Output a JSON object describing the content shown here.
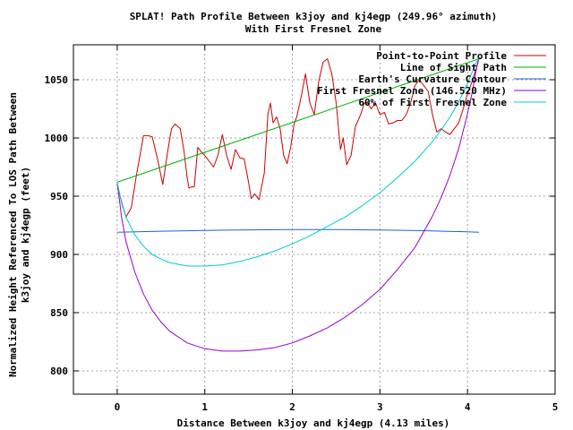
{
  "chart_data": {
    "type": "line",
    "title": "SPLAT! Path Profile Between k3joy and kj4egp (249.96° azimuth)",
    "subtitle": "With First Fresnel Zone",
    "xlabel": "Distance Between k3joy and kj4egp (4.13 miles)",
    "ylabel_line1": "Normalized Height Referenced To LOS Path Between",
    "ylabel_line2": "k3joy and kj4egp (feet)",
    "xlim": [
      -0.5,
      5
    ],
    "ylim": [
      780,
      1080
    ],
    "x_ticks": [
      0,
      1,
      2,
      3,
      4,
      5
    ],
    "y_ticks": [
      800,
      850,
      900,
      950,
      1000,
      1050
    ],
    "grid": true,
    "legend_position": "top-right",
    "series": [
      {
        "name": "Point-to-Point Profile",
        "color": "#cc0000",
        "x": [
          0.0,
          0.05,
          0.1,
          0.16,
          0.22,
          0.3,
          0.35,
          0.4,
          0.46,
          0.52,
          0.58,
          0.62,
          0.66,
          0.72,
          0.76,
          0.8,
          0.82,
          0.85,
          0.88,
          0.92,
          0.96,
          1.0,
          1.05,
          1.1,
          1.15,
          1.2,
          1.25,
          1.3,
          1.35,
          1.4,
          1.45,
          1.5,
          1.53,
          1.57,
          1.62,
          1.68,
          1.72,
          1.75,
          1.78,
          1.82,
          1.86,
          1.9,
          1.94,
          1.98,
          2.02,
          2.05,
          2.1,
          2.15,
          2.2,
          2.25,
          2.3,
          2.35,
          2.4,
          2.45,
          2.5,
          2.55,
          2.58,
          2.62,
          2.67,
          2.72,
          2.78,
          2.82,
          2.86,
          2.9,
          2.95,
          3.0,
          3.05,
          3.1,
          3.15,
          3.2,
          3.25,
          3.3,
          3.35,
          3.4,
          3.45,
          3.5,
          3.55,
          3.6,
          3.65,
          3.7,
          3.75,
          3.8,
          3.85,
          3.9,
          3.95,
          4.0,
          4.05,
          4.1,
          4.13
        ],
        "y": [
          960,
          945,
          932,
          940,
          968,
          1002,
          1002,
          1001,
          982,
          960,
          990,
          1008,
          1012,
          1008,
          990,
          965,
          957,
          958,
          958,
          992,
          988,
          985,
          980,
          975,
          985,
          1003,
          985,
          973,
          990,
          983,
          982,
          962,
          948,
          952,
          947,
          970,
          1020,
          1030,
          1013,
          1018,
          1008,
          985,
          978,
          992,
          1012,
          1018,
          1035,
          1055,
          1030,
          1020,
          1048,
          1065,
          1068,
          1055,
          1030,
          990,
          1000,
          977,
          985,
          1010,
          1020,
          1030,
          1030,
          1025,
          1030,
          1020,
          1022,
          1012,
          1013,
          1015,
          1015,
          1020,
          1030,
          1045,
          1050,
          1045,
          1040,
          1020,
          1005,
          1008,
          1005,
          1003,
          1008,
          1013,
          1025,
          1038,
          1048,
          1060,
          1068
        ]
      },
      {
        "name": "Line of Sight Path",
        "color": "#00b000",
        "x": [
          0,
          4.13
        ],
        "y": [
          962,
          1068
        ]
      },
      {
        "name": "Earth's Curvature Contour",
        "color": "#1a66cc",
        "x": [
          0,
          0.5,
          1.0,
          1.5,
          2.0,
          2.5,
          3.0,
          3.5,
          4.0,
          4.13
        ],
        "y": [
          919,
          919.9,
          920.6,
          921.1,
          921.4,
          921.4,
          921.0,
          920.4,
          919.4,
          919
        ]
      },
      {
        "name": "First Fresnel Zone (146.520 MHz)",
        "color": "#9900cc",
        "x": [
          0,
          0.05,
          0.1,
          0.2,
          0.3,
          0.4,
          0.5,
          0.6,
          0.8,
          1.0,
          1.2,
          1.4,
          1.6,
          1.8,
          2.0,
          2.2,
          2.4,
          2.6,
          2.8,
          3.0,
          3.2,
          3.4,
          3.6,
          3.7,
          3.8,
          3.9,
          4.0,
          4.05,
          4.1,
          4.13
        ],
        "y": [
          962,
          932,
          911,
          885,
          866,
          852,
          842,
          834,
          824,
          819,
          817,
          817,
          818,
          820,
          824,
          830,
          837,
          846,
          857,
          870,
          887,
          906,
          933,
          949,
          968,
          991,
          1021,
          1038,
          1059,
          1068
        ]
      },
      {
        "name": "60% of First Fresnel Zone",
        "color": "#00cccc",
        "x": [
          0,
          0.05,
          0.1,
          0.2,
          0.3,
          0.4,
          0.5,
          0.6,
          0.8,
          1.0,
          1.2,
          1.4,
          1.6,
          1.8,
          2.0,
          2.2,
          2.4,
          2.6,
          2.8,
          3.0,
          3.2,
          3.4,
          3.6,
          3.7,
          3.8,
          3.9,
          4.0,
          4.05,
          4.1,
          4.13
        ],
        "y": [
          962,
          944,
          932,
          917,
          907,
          900,
          896,
          893,
          890,
          890,
          891,
          894,
          898,
          903,
          909,
          916,
          924,
          932,
          942,
          953,
          966,
          980,
          997,
          1007,
          1018,
          1031,
          1047,
          1056,
          1065,
          1068
        ]
      }
    ]
  }
}
